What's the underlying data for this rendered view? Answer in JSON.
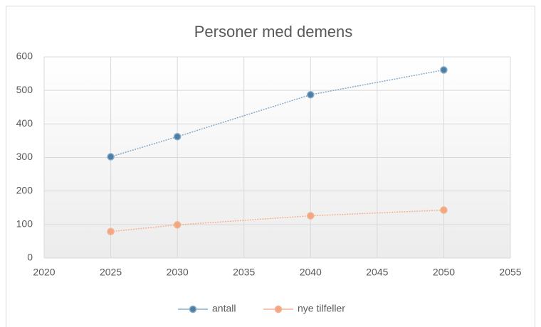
{
  "chart_data": {
    "type": "line",
    "title": "Personer med demens",
    "x": [
      2025,
      2030,
      2040,
      2050
    ],
    "series": [
      {
        "name": "antall",
        "color": "#4e7fa3",
        "line_color": "#86abc9",
        "values": [
          302,
          362,
          487,
          561
        ]
      },
      {
        "name": "nye tilfeller",
        "color": "#f4a582",
        "line_color": "#f2b490",
        "values": [
          79,
          99,
          126,
          143
        ]
      }
    ],
    "xlim": [
      2020,
      2055
    ],
    "xticks": [
      2020,
      2025,
      2030,
      2035,
      2040,
      2045,
      2050,
      2055
    ],
    "ylim": [
      0,
      600
    ],
    "yticks": [
      0,
      100,
      200,
      300,
      400,
      500,
      600
    ],
    "grid": true,
    "legend": "bottom"
  }
}
